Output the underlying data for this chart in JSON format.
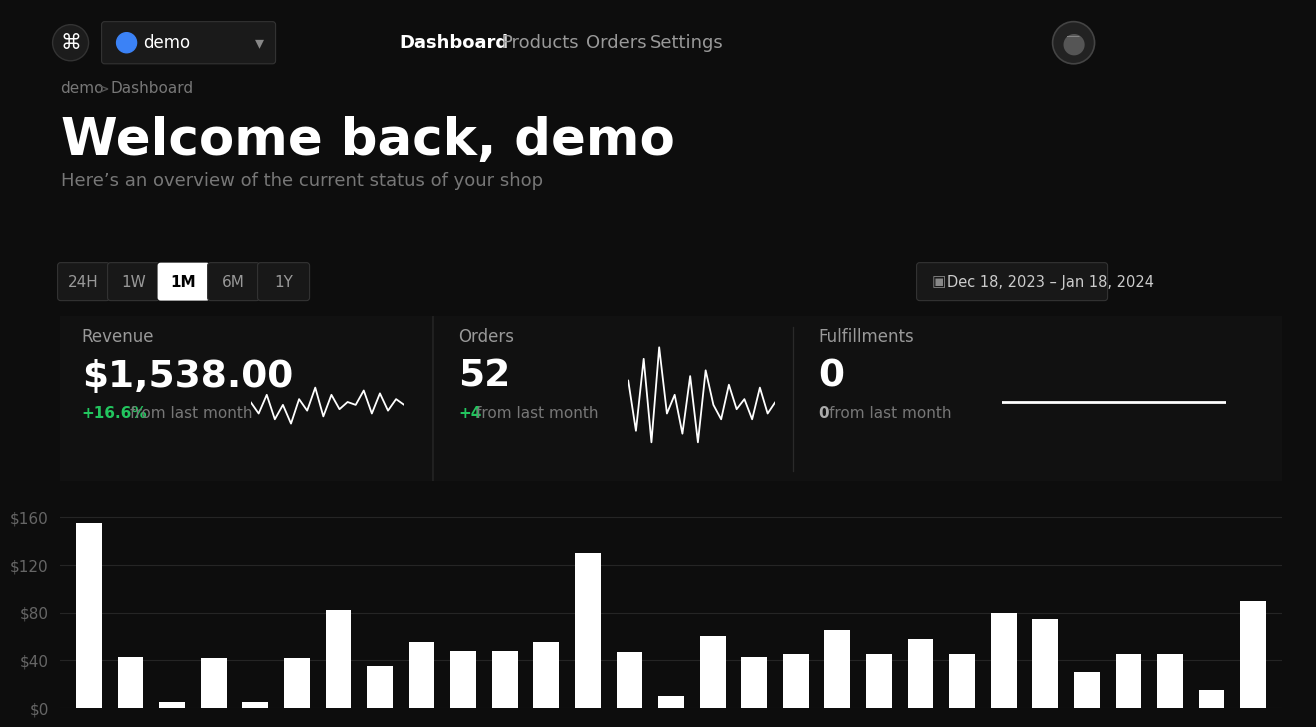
{
  "bg_color": "#0d0d0d",
  "nav_bg": "#111111",
  "title": "Welcome back, demo",
  "subtitle": "Here’s an overview of the current status of your shop",
  "nav_items": [
    "Dashboard",
    "Products",
    "Orders",
    "Settings"
  ],
  "time_filters": [
    "24H",
    "1W",
    "1M",
    "6M",
    "1Y"
  ],
  "active_filter": "1M",
  "date_range": "Dec 18, 2023 – Jan 18, 2024",
  "cards": [
    {
      "label": "Revenue",
      "value": "$1,538.00",
      "change": "+16.6%",
      "change_label": "from last month",
      "change_color": "#22c55e"
    },
    {
      "label": "Orders",
      "value": "52",
      "change": "+4",
      "change_label": "from last month",
      "change_color": "#22c55e"
    },
    {
      "label": "Fulfillments",
      "value": "0",
      "change": "0",
      "change_label": "from last month",
      "change_color": "#aaaaaa"
    }
  ],
  "revenue_sparkline": [
    0.5,
    0.42,
    0.55,
    0.38,
    0.48,
    0.35,
    0.52,
    0.44,
    0.6,
    0.4,
    0.55,
    0.45,
    0.5,
    0.48,
    0.58,
    0.42,
    0.56,
    0.44,
    0.52,
    0.48
  ],
  "orders_sparkline": [
    0.65,
    0.3,
    0.8,
    0.22,
    0.88,
    0.42,
    0.55,
    0.28,
    0.68,
    0.22,
    0.72,
    0.48,
    0.38,
    0.62,
    0.45,
    0.52,
    0.38,
    0.6,
    0.42,
    0.5
  ],
  "bar_values": [
    155,
    43,
    5,
    42,
    5,
    42,
    82,
    35,
    55,
    48,
    48,
    55,
    130,
    47,
    10,
    60,
    43,
    45,
    65,
    45,
    58,
    45,
    80,
    75,
    30,
    45,
    45,
    15,
    90
  ],
  "bar_color": "#ffffff",
  "yticks": [
    0,
    40,
    80,
    120,
    160
  ],
  "ytick_labels": [
    "$0",
    "$40",
    "$80",
    "$120",
    "$160"
  ],
  "ylim": [
    0,
    175
  ],
  "chart_bg": "#0d0d0d",
  "grid_color": "#252525",
  "tick_color": "#666666"
}
